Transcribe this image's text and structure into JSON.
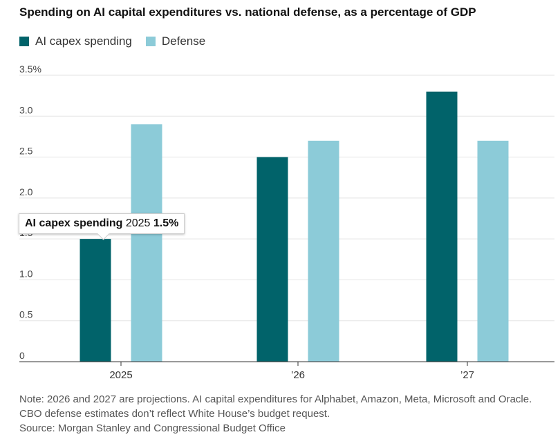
{
  "chart_data": {
    "type": "bar",
    "title": "Spending on AI capital expenditures vs. national defense, as a percentage of GDP",
    "categories": [
      "2025",
      "’26",
      "’27"
    ],
    "series": [
      {
        "name": "AI capex spending",
        "values": [
          1.5,
          2.5,
          3.3
        ]
      },
      {
        "name": "Defense",
        "values": [
          2.9,
          2.7,
          2.7
        ]
      }
    ],
    "ylim": [
      0,
      3.5
    ],
    "yticks": [
      "0",
      "0.5",
      "1.0",
      "1.5",
      "2.0",
      "2.5",
      "3.0",
      "3.5%"
    ],
    "ytick_values": [
      0,
      0.5,
      1.0,
      1.5,
      2.0,
      2.5,
      3.0,
      3.5
    ],
    "grid": true,
    "legend": "top-left",
    "colors": {
      "AI capex spending": "#01636a",
      "Defense": "#8ccbd8"
    }
  },
  "tooltip": {
    "series": "AI capex spending",
    "category": "2025",
    "value": "1.5%"
  },
  "notes": {
    "note": "Note: 2026 and 2027 are projections. AI capital expenditures for Alphabet, Amazon, Meta, Microsoft and Oracle. CBO defense estimates don’t reflect White House’s budget request.",
    "source": "Source: Morgan Stanley and Congressional Budget Office"
  }
}
